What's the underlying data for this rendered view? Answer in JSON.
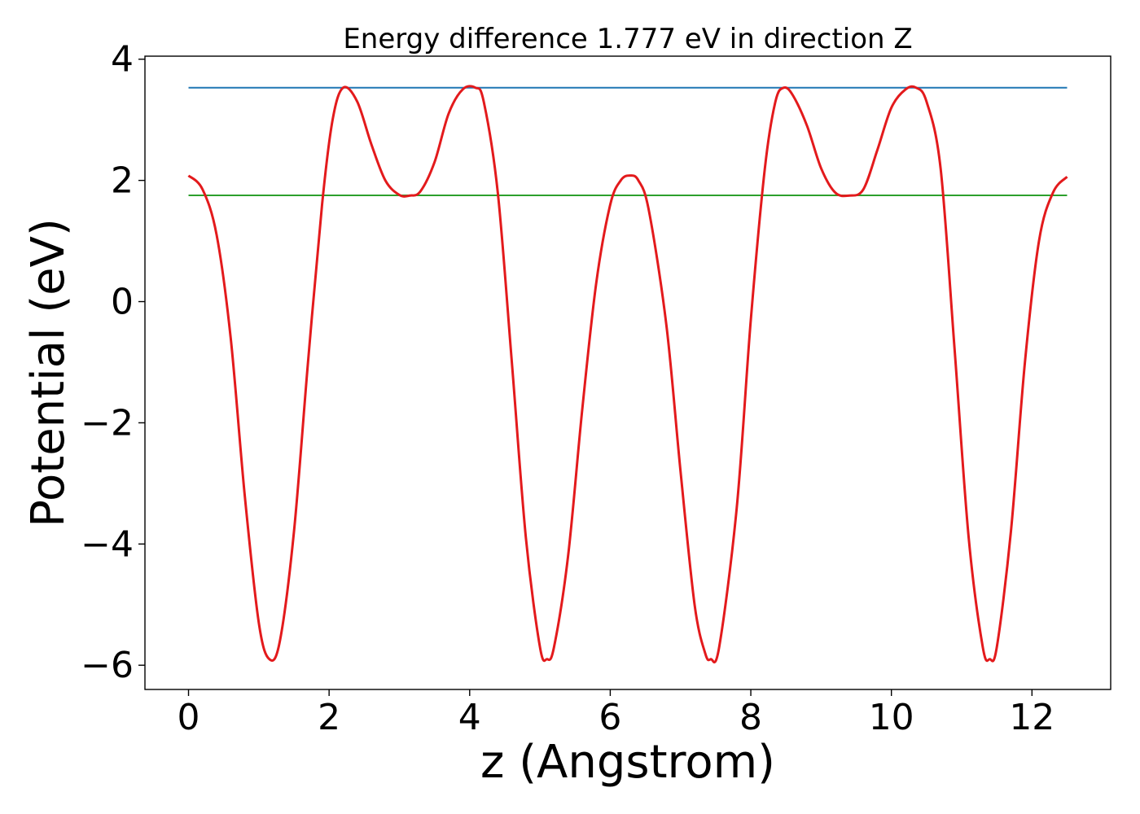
{
  "chart_data": {
    "type": "line",
    "title": "Energy difference 1.777 eV in direction Z",
    "xlabel": "z (Angstrom)",
    "ylabel": "Potential (eV)",
    "xlim": [
      -0.62,
      13.12
    ],
    "ylim": [
      -6.4,
      4.05
    ],
    "x_ticks": [
      0,
      2,
      4,
      6,
      8,
      10,
      12
    ],
    "x_tick_labels": [
      "0",
      "2",
      "4",
      "6",
      "8",
      "10",
      "12"
    ],
    "y_ticks": [
      -6,
      -4,
      -2,
      0,
      2,
      4
    ],
    "y_tick_labels": [
      "−6",
      "−4",
      "−2",
      "0",
      "2",
      "4"
    ],
    "grid": false,
    "colors": {
      "potential": "#e31a1c",
      "max_line": "#1f77b4",
      "min_line": "#2ca02c"
    },
    "series": [
      {
        "role": "potential",
        "x": [
          0,
          0.2,
          0.4,
          0.6,
          0.8,
          1.0,
          1.15,
          1.3,
          1.5,
          1.7,
          1.9,
          2.05,
          2.2,
          2.4,
          2.6,
          2.8,
          3.0,
          3.15,
          3.3,
          3.5,
          3.7,
          3.9,
          4.08,
          4.2,
          4.4,
          4.6,
          4.8,
          5.0,
          5.1,
          5.2,
          5.4,
          5.6,
          5.8,
          6.0,
          6.15,
          6.28,
          6.4,
          6.55,
          6.8,
          7.0,
          7.2,
          7.35,
          7.43,
          7.55,
          7.8,
          8.0,
          8.2,
          8.35,
          8.47,
          8.6,
          8.8,
          9.0,
          9.2,
          9.4,
          9.6,
          9.8,
          10.0,
          10.2,
          10.35,
          10.5,
          10.7,
          10.9,
          11.1,
          11.3,
          11.4,
          11.5,
          11.7,
          11.9,
          12.1,
          12.3,
          12.5
        ],
        "y": [
          2.08,
          1.85,
          1.1,
          -0.6,
          -3.2,
          -5.3,
          -5.9,
          -5.6,
          -3.8,
          -1.0,
          1.6,
          3.0,
          3.53,
          3.3,
          2.6,
          2.0,
          1.76,
          1.75,
          1.82,
          2.3,
          3.1,
          3.5,
          3.53,
          3.3,
          1.8,
          -1.0,
          -3.9,
          -5.7,
          -5.9,
          -5.7,
          -4.2,
          -1.8,
          0.3,
          1.6,
          2.0,
          2.08,
          2.0,
          1.5,
          -0.4,
          -2.8,
          -5.0,
          -5.8,
          -5.9,
          -5.7,
          -3.4,
          -0.3,
          2.2,
          3.3,
          3.53,
          3.4,
          2.9,
          2.2,
          1.8,
          1.75,
          1.85,
          2.5,
          3.2,
          3.5,
          3.53,
          3.3,
          2.2,
          -0.8,
          -3.9,
          -5.7,
          -5.9,
          -5.7,
          -3.8,
          -1.0,
          1.0,
          1.8,
          2.06
        ]
      },
      {
        "role": "max_line",
        "x": [
          0,
          12.5
        ],
        "y": [
          3.53,
          3.53
        ]
      },
      {
        "role": "min_line",
        "x": [
          0,
          12.5
        ],
        "y": [
          1.753,
          1.753
        ]
      }
    ]
  }
}
